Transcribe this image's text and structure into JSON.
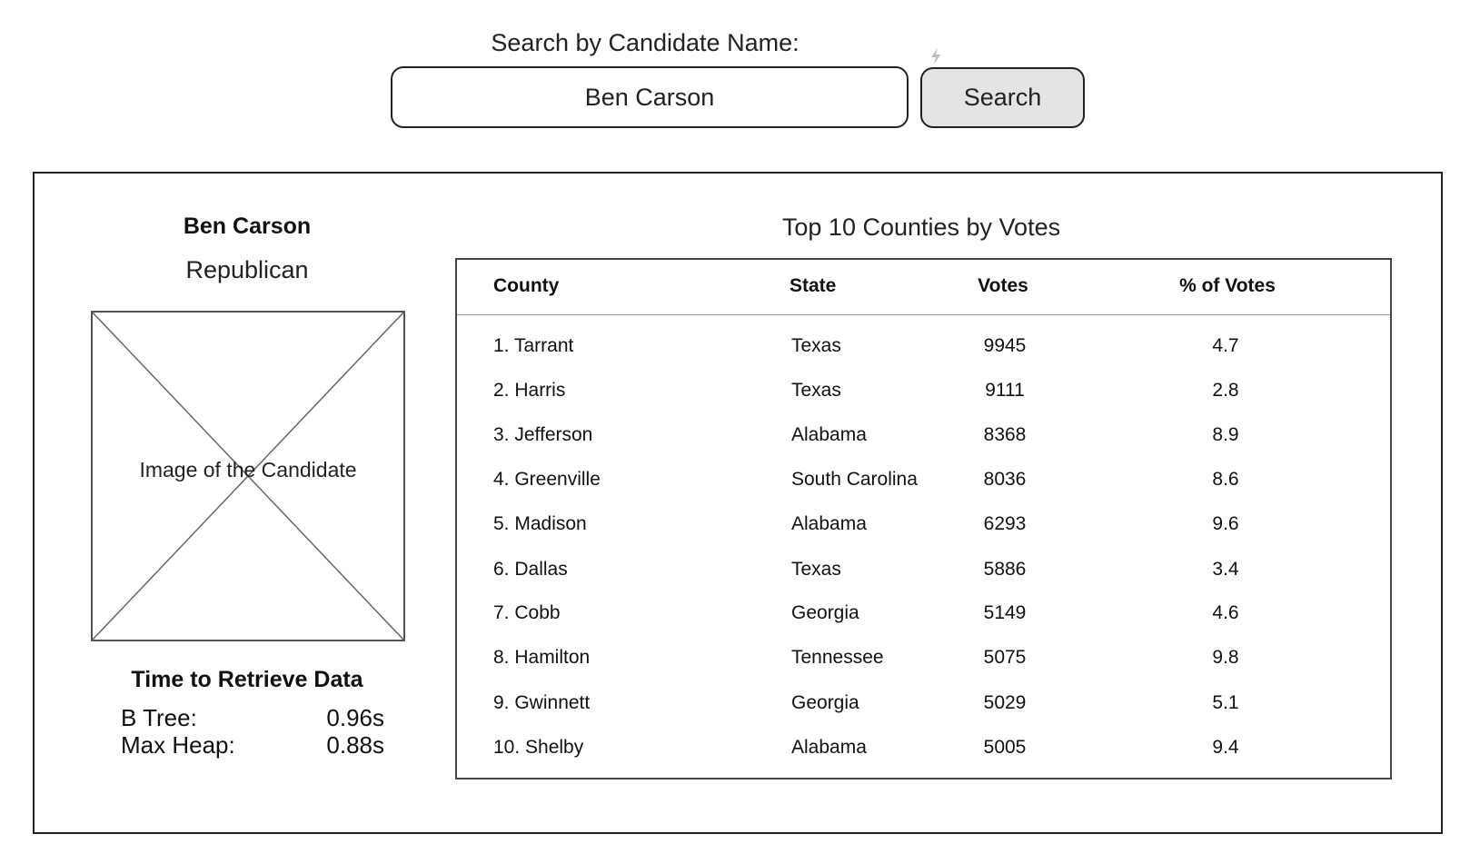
{
  "search": {
    "label": "Search by Candidate Name:",
    "value": "Ben Carson",
    "button_label": "Search"
  },
  "candidate": {
    "name": "Ben Carson",
    "party": "Republican",
    "image_caption": "Image of the Candidate"
  },
  "timing": {
    "title": "Time to Retrieve Data",
    "rows": [
      {
        "label": "B Tree:",
        "value": "0.96s"
      },
      {
        "label": "Max Heap:",
        "value": "0.88s"
      }
    ]
  },
  "table": {
    "title": "Top 10 Counties by Votes",
    "headers": [
      "County",
      "State",
      "Votes",
      "% of Votes"
    ],
    "rows": [
      {
        "county": "1. Tarrant",
        "state": "Texas",
        "votes": "9945",
        "pct": "4.7"
      },
      {
        "county": "2. Harris",
        "state": "Texas",
        "votes": "9111",
        "pct": "2.8"
      },
      {
        "county": "3. Jefferson",
        "state": "Alabama",
        "votes": "8368",
        "pct": "8.9"
      },
      {
        "county": "4. Greenville",
        "state": "South Carolina",
        "votes": "8036",
        "pct": "8.6"
      },
      {
        "county": "5. Madison",
        "state": "Alabama",
        "votes": "6293",
        "pct": "9.6"
      },
      {
        "county": "6. Dallas",
        "state": "Texas",
        "votes": "5886",
        "pct": "3.4"
      },
      {
        "county": "7. Cobb",
        "state": "Georgia",
        "votes": "5149",
        "pct": "4.6"
      },
      {
        "county": "8. Hamilton",
        "state": "Tennessee",
        "votes": "5075",
        "pct": "9.8"
      },
      {
        "county": "9. Gwinnett",
        "state": "Georgia",
        "votes": "5029",
        "pct": "5.1"
      },
      {
        "county": "10. Shelby",
        "state": "Alabama",
        "votes": "5005",
        "pct": "9.4"
      }
    ]
  },
  "icons": {
    "bolt": "lightning-bolt-icon",
    "image_placeholder": "image-placeholder-icon"
  }
}
